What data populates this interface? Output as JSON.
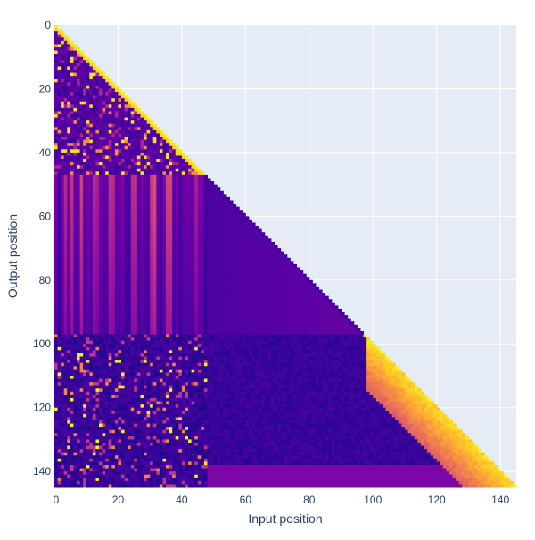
{
  "chart_data": {
    "type": "heatmap",
    "title": "",
    "xlabel": "Input position",
    "ylabel": "Output position",
    "n_positions": 145,
    "x_range": [
      0,
      145
    ],
    "y_range": [
      145,
      0
    ],
    "x_ticks": [
      0,
      20,
      40,
      60,
      80,
      100,
      120,
      140
    ],
    "y_ticks": [
      0,
      20,
      40,
      60,
      80,
      100,
      120,
      140
    ],
    "grid": true,
    "mask": "lower-triangular (input position <= output position)",
    "colorscale": [
      "#0d0887",
      "#46039f",
      "#7201a8",
      "#9c179e",
      "#bd3786",
      "#d8576b",
      "#ed7953",
      "#fb9f3a",
      "#fdca26",
      "#f0f921"
    ],
    "segments": [
      {
        "rows": [
          0,
          47
        ],
        "pattern": "sparse high weights scattered over early inputs, bright diagonal"
      },
      {
        "rows": [
          47,
          97
        ],
        "pattern": "vertical stripes over inputs 0-47, fading haze up to diagonal"
      },
      {
        "rows": [
          97,
          145
        ],
        "pattern": "scattered bright spots over inputs 0-47, warm diagonal band"
      }
    ]
  },
  "colors": {
    "plot_bg": "#e5ecf6",
    "grid": "#ffffff",
    "tick_text": "#2a3f5f",
    "axis_title": "#2a3f5f"
  }
}
